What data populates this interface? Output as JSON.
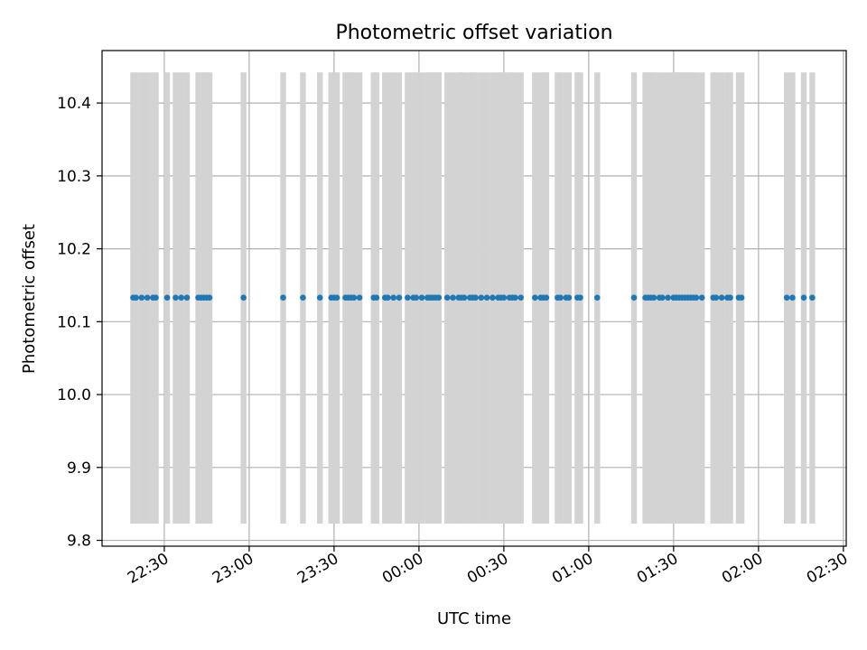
{
  "chart_data": {
    "type": "scatter",
    "title": "Photometric offset variation",
    "xlabel": "UTC time",
    "ylabel": "Photometric offset",
    "x_axis": "time",
    "xlim": [
      "22:08",
      "02:31"
    ],
    "ylim": [
      9.792,
      10.472
    ],
    "x_ticks": [
      "22:30",
      "23:00",
      "23:30",
      "00:00",
      "00:30",
      "01:00",
      "01:30",
      "02:00",
      "02:30"
    ],
    "y_ticks": [
      "9.8",
      "9.9",
      "10.0",
      "10.1",
      "10.2",
      "10.3",
      "10.4"
    ],
    "y_tick_values": [
      9.8,
      9.9,
      10.0,
      10.1,
      10.2,
      10.3,
      10.4
    ],
    "grid": true,
    "legend": "none",
    "colors": {
      "points": "#1f77b4",
      "error_bars": "#d3d3d3",
      "grid": "#b0b0b0"
    },
    "errorbar_range": [
      9.823,
      10.442
    ],
    "series": [
      {
        "type": "scatter",
        "y_value": 10.133,
        "x": [
          "22:19",
          "22:20",
          "22:22",
          "22:24",
          "22:26",
          "22:27",
          "22:31",
          "22:34",
          "22:36",
          "22:38",
          "22:42",
          "22:43",
          "22:44",
          "22:45",
          "22:46",
          "22:58",
          "23:12",
          "23:19",
          "23:25",
          "23:29",
          "23:30",
          "23:31",
          "23:34",
          "23:35",
          "23:36",
          "23:37",
          "23:39",
          "23:44",
          "23:45",
          "23:48",
          "23:49",
          "23:51",
          "23:53",
          "23:56",
          "23:58",
          "23:59",
          "24:01",
          "24:03",
          "24:04",
          "24:05",
          "24:06",
          "24:07",
          "24:10",
          "24:12",
          "24:14",
          "24:15",
          "24:16",
          "24:18",
          "24:19",
          "24:20",
          "24:22",
          "24:24",
          "24:26",
          "24:28",
          "24:29",
          "24:30",
          "24:32",
          "24:33",
          "24:34",
          "25:30",
          "24:36",
          "24:41",
          "24:43",
          "24:44",
          "24:45",
          "24:49",
          "24:50",
          "24:52",
          "24:53",
          "24:56",
          "24:57",
          "25:03",
          "25:16",
          "25:20",
          "25:21",
          "25:22",
          "25:23",
          "25:25",
          "25:26",
          "25:28",
          "25:30",
          "25:31",
          "25:32",
          "25:33",
          "25:34",
          "25:35",
          "25:36",
          "25:37",
          "25:38",
          "25:40",
          "25:44",
          "25:45",
          "25:47",
          "25:49",
          "25:50",
          "25:53",
          "25:54",
          "26:10",
          "26:12",
          "26:16",
          "26:19"
        ]
      }
    ]
  }
}
